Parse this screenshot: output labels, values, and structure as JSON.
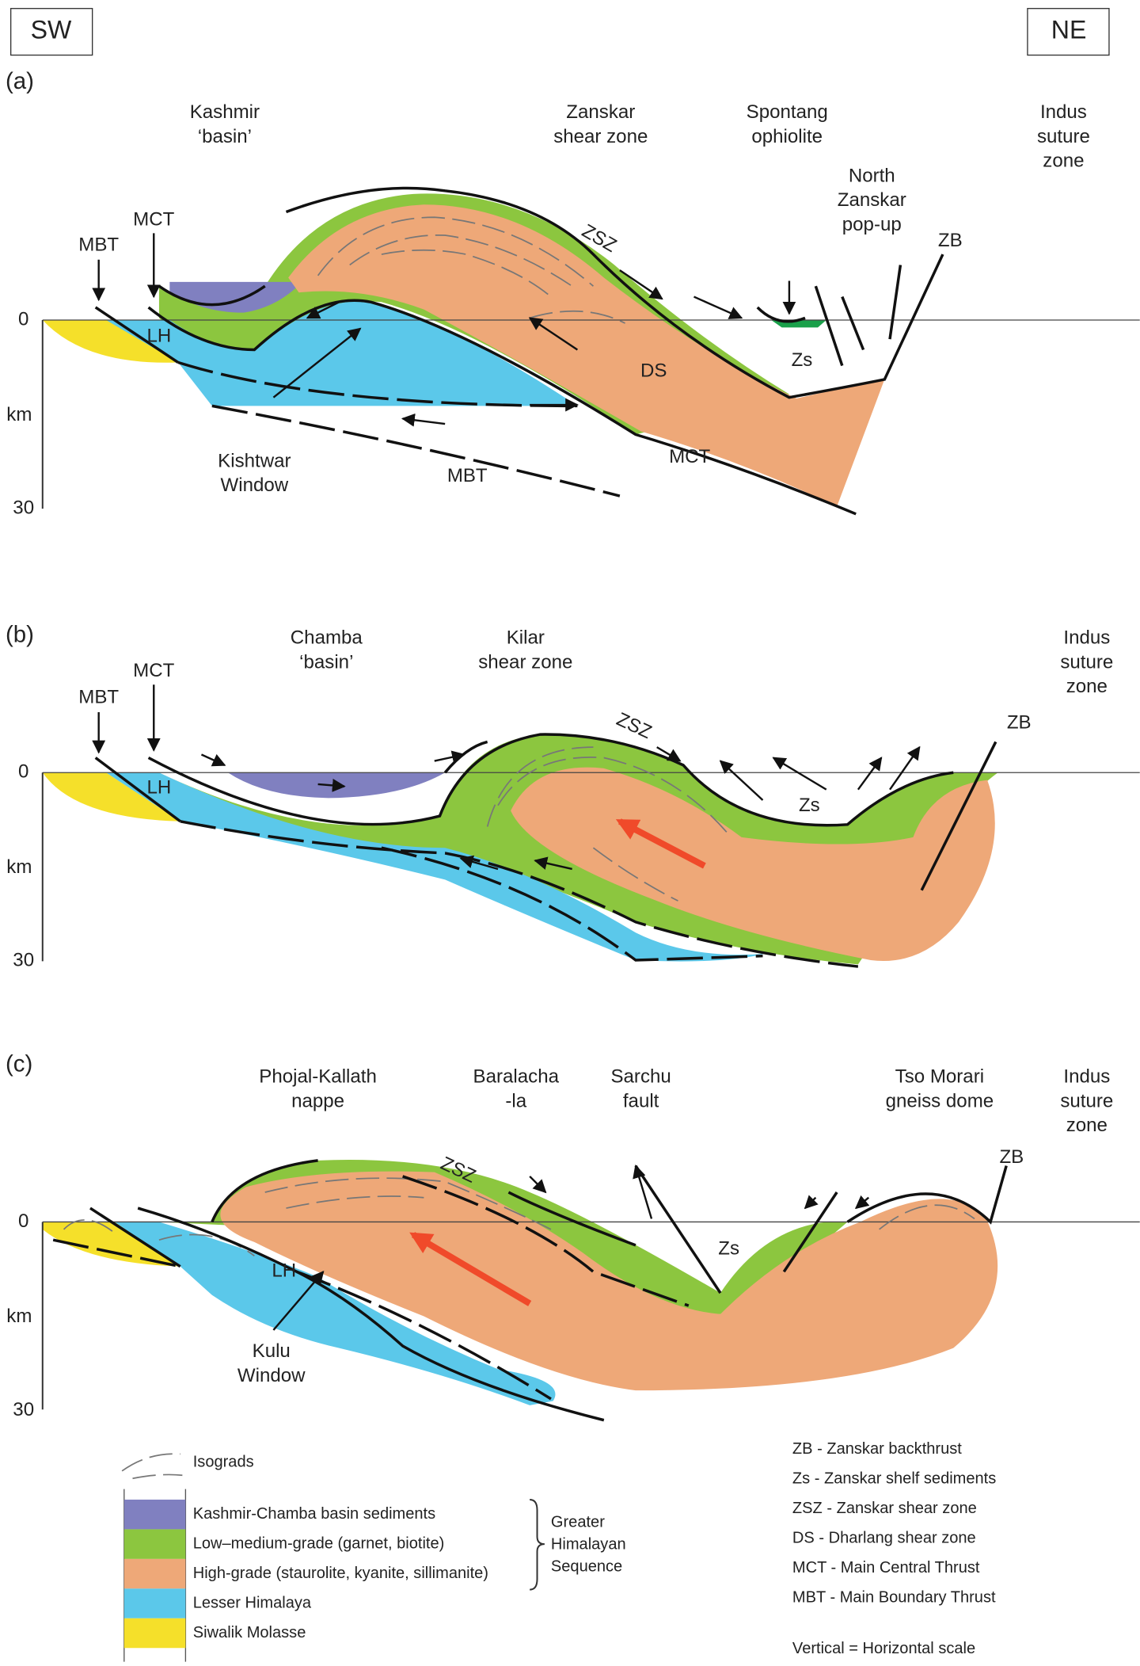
{
  "header": {
    "sw": "SW",
    "ne": "NE"
  },
  "panels": [
    {
      "label": "(a)",
      "axis": {
        "zero": 0,
        "unit": "km",
        "depth": 30
      },
      "labels": [
        [
          "Kashmir",
          "‘basin’"
        ],
        [
          "Zanskar",
          "shear zone"
        ],
        [
          "Spontang",
          "ophiolite"
        ],
        [
          "Indus",
          "suture",
          "zone"
        ],
        [
          "North",
          "Zanskar",
          "pop-up"
        ],
        [
          "MBT"
        ],
        [
          "MCT"
        ],
        [
          "ZSZ"
        ],
        [
          "ZB"
        ],
        [
          "LH"
        ],
        [
          "DS"
        ],
        [
          "Zs"
        ],
        [
          "Kishtwar",
          "Window"
        ],
        [
          "MBT"
        ],
        [
          "MCT"
        ]
      ]
    },
    {
      "label": "(b)",
      "axis": {
        "zero": 0,
        "unit": "km",
        "depth": 30
      },
      "labels": [
        [
          "MBT"
        ],
        [
          "MCT"
        ],
        [
          "Chamba",
          "‘basin’"
        ],
        [
          "Kilar",
          "shear zone"
        ],
        [
          "Indus",
          "suture",
          "zone"
        ],
        [
          "ZSZ"
        ],
        [
          "ZB"
        ],
        [
          "LH"
        ],
        [
          "Zs"
        ]
      ]
    },
    {
      "label": "(c)",
      "axis": {
        "zero": 0,
        "unit": "km",
        "depth": 30
      },
      "labels": [
        [
          "Phojal-Kallath",
          "nappe"
        ],
        [
          "Baralacha",
          "-la"
        ],
        [
          "Sarchu",
          "fault"
        ],
        [
          "Tso Morari",
          "gneiss dome"
        ],
        [
          "Indus",
          "suture",
          "zone"
        ],
        [
          "ZSZ"
        ],
        [
          "ZB"
        ],
        [
          "LH"
        ],
        [
          "Zs"
        ],
        [
          "Kulu",
          "Window"
        ]
      ]
    }
  ],
  "legend": {
    "isograds": "Isograds",
    "units": [
      "Kashmir-Chamba basin sediments",
      "Low–medium-grade (garnet, biotite)",
      "High-grade (staurolite, kyanite, sillimanite)",
      "Lesser Himalaya",
      "Siwalik Molasse"
    ],
    "group": [
      "Greater",
      "Himalayan",
      "Sequence"
    ],
    "abbreviations": [
      "ZB - Zanskar backthrust",
      "Zs - Zanskar shelf sediments",
      "ZSZ - Zanskar shear zone",
      "DS - Dharlang shear zone",
      "MCT - Main Central Thrust",
      "MBT - Main Boundary Thrust"
    ],
    "scale_note": "Vertical = Horizontal scale"
  }
}
